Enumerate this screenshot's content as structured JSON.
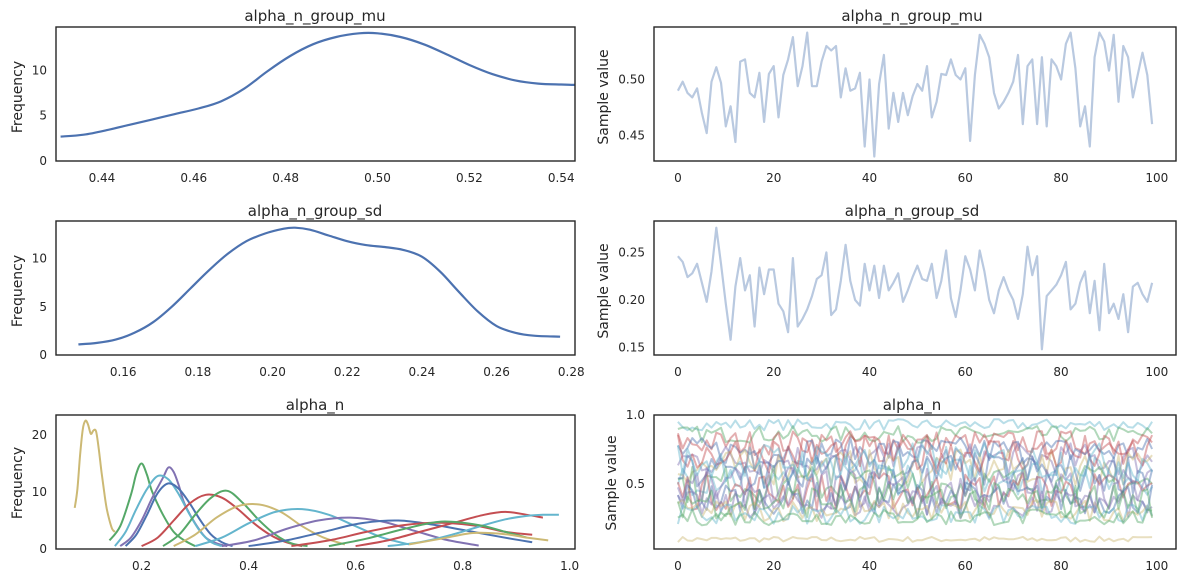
{
  "colors": {
    "primary": "#4c72b0",
    "trace": "#b9c9e0",
    "palette": [
      "#4c72b0",
      "#55a868",
      "#c44e52",
      "#8172b2",
      "#ccb974",
      "#64b5cd"
    ]
  },
  "chart_data": [
    {
      "type": "line",
      "title": "alpha_n_group_mu",
      "xlabel": "",
      "ylabel": "Frequency",
      "xlim": [
        0.43,
        0.543
      ],
      "ylim": [
        0,
        14.8
      ],
      "xticks": [
        "0.44",
        "0.46",
        "0.48",
        "0.50",
        "0.52",
        "0.54"
      ],
      "yticks": [
        "0",
        "5",
        "10"
      ],
      "series": [
        {
          "x": [
            0.431,
            0.436,
            0.441,
            0.446,
            0.451,
            0.456,
            0.461,
            0.466,
            0.471,
            0.476,
            0.481,
            0.486,
            0.491,
            0.496,
            0.5,
            0.505,
            0.51,
            0.515,
            0.52,
            0.525,
            0.53,
            0.535,
            0.54,
            0.543
          ],
          "y": [
            2.7,
            2.9,
            3.4,
            4.0,
            4.6,
            5.2,
            5.8,
            6.6,
            8.0,
            9.9,
            11.6,
            12.9,
            13.7,
            14.1,
            14.1,
            13.7,
            12.9,
            11.8,
            10.6,
            9.6,
            8.9,
            8.55,
            8.45,
            8.4
          ]
        }
      ]
    },
    {
      "type": "line",
      "title": "alpha_n_group_mu",
      "xlabel": "",
      "ylabel": "Sample value",
      "xlim": [
        -5,
        104
      ],
      "ylim": [
        0.427,
        0.547
      ],
      "xticks": [
        "0",
        "20",
        "40",
        "60",
        "80",
        "100"
      ],
      "yticks": [
        "0.45",
        "0.50"
      ],
      "series": [
        {
          "y": [
            0.49,
            0.498,
            0.488,
            0.484,
            0.492,
            0.47,
            0.452,
            0.498,
            0.511,
            0.497,
            0.458,
            0.476,
            0.444,
            0.516,
            0.518,
            0.488,
            0.484,
            0.506,
            0.462,
            0.505,
            0.512,
            0.466,
            0.504,
            0.518,
            0.538,
            0.494,
            0.512,
            0.542,
            0.494,
            0.494,
            0.516,
            0.53,
            0.526,
            0.53,
            0.484,
            0.51,
            0.49,
            0.492,
            0.506,
            0.44,
            0.5,
            0.431,
            0.496,
            0.522,
            0.456,
            0.488,
            0.462,
            0.488,
            0.468,
            0.485,
            0.496,
            0.49,
            0.512,
            0.466,
            0.48,
            0.505,
            0.504,
            0.518,
            0.504,
            0.5,
            0.51,
            0.445,
            0.504,
            0.54,
            0.532,
            0.52,
            0.488,
            0.474,
            0.48,
            0.488,
            0.498,
            0.522,
            0.46,
            0.512,
            0.518,
            0.46,
            0.52,
            0.458,
            0.518,
            0.512,
            0.5,
            0.532,
            0.542,
            0.51,
            0.458,
            0.476,
            0.44,
            0.52,
            0.542,
            0.534,
            0.508,
            0.54,
            0.48,
            0.53,
            0.52,
            0.484,
            0.504,
            0.524,
            0.504,
            0.46
          ]
        }
      ]
    },
    {
      "type": "line",
      "title": "alpha_n_group_sd",
      "xlabel": "",
      "ylabel": "Frequency",
      "xlim": [
        0.142,
        0.281
      ],
      "ylim": [
        0,
        13.9
      ],
      "xticks": [
        "0.16",
        "0.18",
        "0.20",
        "0.22",
        "0.24",
        "0.26",
        "0.28"
      ],
      "yticks": [
        "0",
        "5",
        "10"
      ],
      "series": [
        {
          "x": [
            0.148,
            0.153,
            0.158,
            0.163,
            0.168,
            0.173,
            0.178,
            0.183,
            0.188,
            0.193,
            0.198,
            0.203,
            0.206,
            0.21,
            0.215,
            0.22,
            0.225,
            0.23,
            0.235,
            0.24,
            0.245,
            0.25,
            0.255,
            0.26,
            0.265,
            0.27,
            0.277
          ],
          "y": [
            1.1,
            1.25,
            1.6,
            2.3,
            3.4,
            5.0,
            6.9,
            8.8,
            10.5,
            11.8,
            12.6,
            13.1,
            13.2,
            13.0,
            12.4,
            11.8,
            11.4,
            11.2,
            10.9,
            10.2,
            8.6,
            6.5,
            4.5,
            3.0,
            2.3,
            2.0,
            1.9
          ]
        }
      ]
    },
    {
      "type": "line",
      "title": "alpha_n_group_sd",
      "xlabel": "",
      "ylabel": "Sample value",
      "xlim": [
        -5,
        104
      ],
      "ylim": [
        0.142,
        0.283
      ],
      "xticks": [
        "0",
        "20",
        "40",
        "60",
        "80",
        "100"
      ],
      "yticks": [
        "0.15",
        "0.20",
        "0.25"
      ],
      "series": [
        {
          "y": [
            0.246,
            0.24,
            0.224,
            0.228,
            0.238,
            0.218,
            0.198,
            0.23,
            0.276,
            0.238,
            0.196,
            0.158,
            0.214,
            0.244,
            0.21,
            0.226,
            0.172,
            0.234,
            0.206,
            0.232,
            0.232,
            0.196,
            0.188,
            0.166,
            0.244,
            0.172,
            0.18,
            0.19,
            0.204,
            0.222,
            0.226,
            0.25,
            0.184,
            0.19,
            0.22,
            0.258,
            0.22,
            0.2,
            0.194,
            0.238,
            0.21,
            0.236,
            0.202,
            0.236,
            0.21,
            0.218,
            0.228,
            0.198,
            0.21,
            0.224,
            0.236,
            0.222,
            0.22,
            0.238,
            0.202,
            0.22,
            0.252,
            0.202,
            0.182,
            0.21,
            0.246,
            0.232,
            0.21,
            0.252,
            0.23,
            0.2,
            0.186,
            0.21,
            0.224,
            0.21,
            0.2,
            0.18,
            0.206,
            0.256,
            0.226,
            0.246,
            0.148,
            0.204,
            0.21,
            0.216,
            0.226,
            0.24,
            0.19,
            0.196,
            0.218,
            0.23,
            0.186,
            0.22,
            0.168,
            0.238,
            0.186,
            0.196,
            0.18,
            0.206,
            0.166,
            0.214,
            0.218,
            0.206,
            0.198,
            0.218
          ]
        }
      ]
    },
    {
      "type": "line",
      "title": "alpha_n",
      "xlabel": "",
      "ylabel": "Frequency",
      "xlim": [
        0.04,
        1.01
      ],
      "ylim": [
        0,
        23.5
      ],
      "xticks": [
        "0.2",
        "0.4",
        "0.6",
        "0.8",
        "1.0"
      ],
      "yticks": [
        "0",
        "10",
        "20"
      ],
      "series": [
        {
          "color": "#ccb974",
          "x": [
            0.075,
            0.08,
            0.085,
            0.09,
            0.095,
            0.1,
            0.105,
            0.11,
            0.115,
            0.12,
            0.125,
            0.13,
            0.135,
            0.14,
            0.145,
            0.15
          ],
          "y": [
            7.2,
            10.5,
            16.5,
            21.0,
            22.5,
            21.8,
            20.2,
            20.8,
            20.6,
            17.5,
            13.5,
            10.0,
            7.0,
            5.0,
            3.5,
            3.0
          ]
        },
        {
          "color": "#55a868",
          "x": [
            0.14,
            0.16,
            0.18,
            0.19,
            0.2,
            0.21,
            0.22,
            0.24,
            0.26,
            0.28,
            0.3
          ],
          "y": [
            1.5,
            4.0,
            9.5,
            13.2,
            15.0,
            13.0,
            10.0,
            6.0,
            3.0,
            1.5,
            0.5
          ]
        },
        {
          "color": "#8172b2",
          "x": [
            0.16,
            0.18,
            0.2,
            0.22,
            0.24,
            0.25,
            0.26,
            0.27,
            0.28,
            0.3,
            0.32,
            0.34,
            0.36
          ],
          "y": [
            0.5,
            2.0,
            5.0,
            9.0,
            12.5,
            14.3,
            13.5,
            11.0,
            8.0,
            4.5,
            2.0,
            1.0,
            0.5
          ]
        },
        {
          "color": "#64b5cd",
          "x": [
            0.15,
            0.17,
            0.19,
            0.21,
            0.23,
            0.25,
            0.27,
            0.29,
            0.31,
            0.33,
            0.35
          ],
          "y": [
            0.5,
            3.0,
            7.0,
            10.5,
            12.8,
            12.2,
            9.5,
            6.0,
            3.0,
            1.2,
            0.5
          ]
        },
        {
          "color": "#4c72b0",
          "x": [
            0.17,
            0.19,
            0.21,
            0.23,
            0.25,
            0.27,
            0.29,
            0.31,
            0.33,
            0.35,
            0.37
          ],
          "y": [
            0.5,
            2.5,
            6.0,
            9.8,
            11.5,
            10.5,
            8.0,
            5.0,
            2.5,
            1.2,
            0.5
          ]
        },
        {
          "color": "#c44e52",
          "x": [
            0.2,
            0.23,
            0.26,
            0.29,
            0.32,
            0.35,
            0.38,
            0.41,
            0.44,
            0.47,
            0.5
          ],
          "y": [
            0.5,
            2.0,
            5.0,
            8.0,
            9.5,
            9.0,
            7.0,
            4.5,
            2.5,
            1.2,
            0.5
          ]
        },
        {
          "color": "#55a868",
          "x": [
            0.24,
            0.27,
            0.3,
            0.33,
            0.36,
            0.39,
            0.42,
            0.45,
            0.48,
            0.51
          ],
          "y": [
            0.5,
            2.5,
            6.0,
            9.0,
            10.2,
            8.0,
            5.0,
            2.5,
            1.0,
            0.5
          ]
        },
        {
          "color": "#ccb974",
          "x": [
            0.26,
            0.3,
            0.34,
            0.38,
            0.42,
            0.46,
            0.5,
            0.54,
            0.58
          ],
          "y": [
            0.5,
            2.5,
            5.5,
            7.5,
            7.8,
            6.5,
            4.0,
            2.0,
            0.8
          ]
        },
        {
          "color": "#64b5cd",
          "x": [
            0.3,
            0.35,
            0.4,
            0.45,
            0.5,
            0.55,
            0.6,
            0.65,
            0.7
          ],
          "y": [
            0.5,
            2.0,
            4.5,
            6.5,
            7.0,
            6.0,
            4.0,
            2.0,
            0.8
          ]
        },
        {
          "color": "#8172b2",
          "x": [
            0.35,
            0.41,
            0.47,
            0.53,
            0.59,
            0.65,
            0.71,
            0.77,
            0.83
          ],
          "y": [
            0.5,
            1.5,
            3.5,
            5.0,
            5.5,
            4.8,
            3.2,
            1.6,
            0.6
          ]
        },
        {
          "color": "#4c72b0",
          "x": [
            0.4,
            0.47,
            0.54,
            0.61,
            0.68,
            0.75,
            0.82,
            0.89,
            0.93
          ],
          "y": [
            0.5,
            1.5,
            3.0,
            4.5,
            5.0,
            4.2,
            3.0,
            1.8,
            1.2
          ]
        },
        {
          "color": "#c44e52",
          "x": [
            0.48,
            0.55,
            0.62,
            0.69,
            0.76,
            0.83,
            0.88,
            0.93
          ],
          "y": [
            0.5,
            1.5,
            3.0,
            4.2,
            4.6,
            4.0,
            3.0,
            2.5
          ]
        },
        {
          "color": "#c44e52",
          "x": [
            0.6,
            0.66,
            0.72,
            0.78,
            0.84,
            0.88,
            0.92,
            0.95
          ],
          "y": [
            0.5,
            1.5,
            3.0,
            4.5,
            6.0,
            6.5,
            6.0,
            5.5
          ]
        },
        {
          "color": "#64b5cd",
          "x": [
            0.66,
            0.72,
            0.78,
            0.84,
            0.88,
            0.92,
            0.95,
            0.98
          ],
          "y": [
            0.5,
            1.2,
            2.5,
            4.2,
            5.2,
            5.8,
            6.0,
            6.0
          ]
        },
        {
          "color": "#55a868",
          "x": [
            0.55,
            0.62,
            0.69,
            0.76,
            0.83,
            0.88,
            0.92
          ],
          "y": [
            0.5,
            1.8,
            3.5,
            4.8,
            4.2,
            3.0,
            2.0
          ]
        },
        {
          "color": "#ccb974",
          "x": [
            0.7,
            0.76,
            0.82,
            0.88,
            0.92,
            0.96
          ],
          "y": [
            0.8,
            1.8,
            2.8,
            2.6,
            2.0,
            1.5
          ]
        }
      ]
    },
    {
      "type": "line",
      "title": "alpha_n",
      "xlabel": "",
      "ylabel": "Sample value",
      "xlim": [
        -5,
        104
      ],
      "ylim": [
        0.03,
        1.0
      ],
      "xticks": [
        "0",
        "20",
        "40",
        "60",
        "80",
        "100"
      ],
      "yticks": [
        "0.5",
        "1.0"
      ],
      "series": [
        {
          "color": "#ccb974",
          "mean": 0.1,
          "amp": 0.02
        },
        {
          "color": "#64b5cd",
          "mean": 0.93,
          "amp": 0.04
        },
        {
          "color": "#55a868",
          "mean": 0.86,
          "amp": 0.06
        },
        {
          "color": "#c44e52",
          "mean": 0.8,
          "amp": 0.09
        },
        {
          "color": "#4c72b0",
          "mean": 0.74,
          "amp": 0.1
        },
        {
          "color": "#8172b2",
          "mean": 0.68,
          "amp": 0.12
        },
        {
          "color": "#ccb974",
          "mean": 0.62,
          "amp": 0.13
        },
        {
          "color": "#64b5cd",
          "mean": 0.56,
          "amp": 0.14
        },
        {
          "color": "#55a868",
          "mean": 0.5,
          "amp": 0.14
        },
        {
          "color": "#c44e52",
          "mean": 0.45,
          "amp": 0.14
        },
        {
          "color": "#4c72b0",
          "mean": 0.4,
          "amp": 0.12
        },
        {
          "color": "#8172b2",
          "mean": 0.35,
          "amp": 0.1
        },
        {
          "color": "#ccb974",
          "mean": 0.31,
          "amp": 0.08
        },
        {
          "color": "#64b5cd",
          "mean": 0.28,
          "amp": 0.07
        },
        {
          "color": "#55a868",
          "mean": 0.26,
          "amp": 0.06
        },
        {
          "color": "#c44e52",
          "mean": 0.72,
          "amp": 0.14
        },
        {
          "color": "#4c72b0",
          "mean": 0.58,
          "amp": 0.15
        },
        {
          "color": "#8172b2",
          "mean": 0.47,
          "amp": 0.15
        },
        {
          "color": "#55a868",
          "mean": 0.38,
          "amp": 0.13
        },
        {
          "color": "#64b5cd",
          "mean": 0.66,
          "amp": 0.14
        }
      ]
    }
  ]
}
